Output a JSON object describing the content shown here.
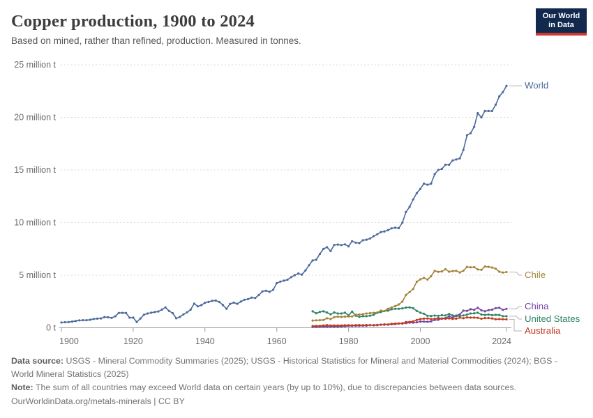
{
  "header": {
    "title": "Copper production, 1900 to 2024",
    "subtitle": "Based on mined, rather than refined, production. Measured in tonnes."
  },
  "logo": {
    "line1": "Our World",
    "line2": "in Data",
    "bg_color": "#12294e",
    "accent_color": "#ce392f"
  },
  "footer": {
    "source_label": "Data source:",
    "source_text": "USGS - Mineral Commodity Summaries (2025); USGS - Historical Statistics for Mineral and Material Commodities (2024); BGS - World Mineral Statistics (2025)",
    "note_label": "Note:",
    "note_text": "The sum of all countries may exceed World data on certain years (by up to 10%), due to discrepancies between data sources.",
    "url": "OurWorldinData.org/metals-minerals",
    "separator": "|",
    "license": "CC BY"
  },
  "chart_data": {
    "type": "line",
    "title": "Copper production, 1900 to 2024",
    "unit": "million tonnes",
    "xlabel": "",
    "ylabel": "",
    "ylim_million_t": [
      0,
      25
    ],
    "grid": "horizontal-dashed",
    "legend_position": "right-edge-labels",
    "x_ticks": [
      1900,
      1920,
      1940,
      1960,
      1980,
      2000,
      2024
    ],
    "y_ticks": [
      {
        "value": 0,
        "label": "0 t"
      },
      {
        "value": 5,
        "label": "5 million t"
      },
      {
        "value": 10,
        "label": "10 million t"
      },
      {
        "value": 15,
        "label": "15 million t"
      },
      {
        "value": 20,
        "label": "20 million t"
      },
      {
        "value": 25,
        "label": "25 million t"
      }
    ],
    "series": [
      {
        "name": "World",
        "color": "#4C6A9C",
        "start_year": 1900,
        "values_million_t": [
          0.5,
          0.53,
          0.54,
          0.59,
          0.65,
          0.7,
          0.72,
          0.72,
          0.76,
          0.84,
          0.87,
          0.89,
          1.02,
          1.0,
          0.94,
          1.09,
          1.41,
          1.42,
          1.41,
          0.96,
          0.97,
          0.54,
          0.88,
          1.24,
          1.36,
          1.43,
          1.5,
          1.55,
          1.73,
          1.94,
          1.6,
          1.39,
          0.9,
          1.03,
          1.27,
          1.47,
          1.72,
          2.3,
          2.03,
          2.15,
          2.38,
          2.46,
          2.56,
          2.59,
          2.45,
          2.16,
          1.81,
          2.27,
          2.39,
          2.28,
          2.49,
          2.66,
          2.73,
          2.87,
          2.83,
          3.11,
          3.46,
          3.52,
          3.42,
          3.61,
          4.24,
          4.39,
          4.48,
          4.57,
          4.81,
          5.0,
          5.16,
          5.05,
          5.46,
          5.95,
          6.4,
          6.48,
          7.01,
          7.49,
          7.66,
          7.29,
          7.87,
          7.91,
          7.86,
          7.93,
          7.74,
          8.23,
          8.09,
          8.05,
          8.32,
          8.37,
          8.49,
          8.71,
          8.89,
          9.1,
          9.16,
          9.28,
          9.46,
          9.51,
          9.47,
          10.0,
          11.0,
          11.5,
          12.2,
          12.8,
          13.2,
          13.7,
          13.6,
          13.7,
          14.6,
          15.0,
          15.1,
          15.5,
          15.5,
          15.9,
          16.0,
          16.1,
          16.9,
          18.3,
          18.5,
          19.1,
          20.4,
          20.0,
          20.6,
          20.6,
          20.6,
          21.2,
          22.0,
          22.4,
          23.0
        ]
      },
      {
        "name": "Chile",
        "color": "#A2843B",
        "start_year": 1970,
        "values_million_t": [
          0.69,
          0.71,
          0.72,
          0.74,
          0.9,
          0.83,
          1.01,
          1.06,
          1.03,
          1.06,
          1.07,
          1.08,
          1.24,
          1.26,
          1.29,
          1.36,
          1.4,
          1.42,
          1.45,
          1.63,
          1.59,
          1.81,
          1.93,
          2.06,
          2.22,
          2.49,
          3.12,
          3.39,
          3.69,
          4.38,
          4.6,
          4.74,
          4.58,
          4.9,
          5.41,
          5.32,
          5.36,
          5.56,
          5.33,
          5.39,
          5.42,
          5.26,
          5.43,
          5.78,
          5.75,
          5.76,
          5.55,
          5.5,
          5.83,
          5.79,
          5.73,
          5.62,
          5.33,
          5.25,
          5.3
        ]
      },
      {
        "name": "China",
        "color": "#7645A0",
        "start_year": 1970,
        "values_million_t": [
          0.1,
          0.1,
          0.11,
          0.11,
          0.11,
          0.12,
          0.12,
          0.12,
          0.13,
          0.15,
          0.18,
          0.18,
          0.19,
          0.19,
          0.2,
          0.2,
          0.25,
          0.25,
          0.28,
          0.29,
          0.3,
          0.3,
          0.33,
          0.35,
          0.4,
          0.44,
          0.44,
          0.49,
          0.49,
          0.52,
          0.59,
          0.59,
          0.57,
          0.61,
          0.74,
          0.76,
          0.89,
          0.92,
          1.09,
          0.96,
          1.16,
          1.27,
          1.63,
          1.6,
          1.76,
          1.71,
          1.9,
          1.66,
          1.56,
          1.68,
          1.72,
          1.87,
          1.9,
          1.7,
          1.8
        ]
      },
      {
        "name": "United States",
        "color": "#2C8465",
        "start_year": 1970,
        "values_million_t": [
          1.56,
          1.38,
          1.51,
          1.56,
          1.45,
          1.28,
          1.46,
          1.36,
          1.36,
          1.44,
          1.18,
          1.54,
          1.15,
          1.04,
          1.1,
          1.1,
          1.15,
          1.24,
          1.42,
          1.5,
          1.59,
          1.63,
          1.76,
          1.8,
          1.8,
          1.85,
          1.92,
          1.94,
          1.86,
          1.6,
          1.44,
          1.34,
          1.14,
          1.12,
          1.16,
          1.14,
          1.2,
          1.17,
          1.31,
          1.18,
          1.11,
          1.11,
          1.17,
          1.25,
          1.36,
          1.38,
          1.43,
          1.26,
          1.22,
          1.26,
          1.2,
          1.23,
          1.22,
          1.1,
          1.1
        ]
      },
      {
        "name": "Australia",
        "color": "#C03A21",
        "start_year": 1970,
        "values_million_t": [
          0.16,
          0.17,
          0.18,
          0.22,
          0.25,
          0.22,
          0.22,
          0.22,
          0.22,
          0.24,
          0.24,
          0.23,
          0.25,
          0.26,
          0.24,
          0.26,
          0.25,
          0.23,
          0.24,
          0.3,
          0.33,
          0.32,
          0.38,
          0.4,
          0.42,
          0.4,
          0.55,
          0.56,
          0.61,
          0.74,
          0.83,
          0.87,
          0.88,
          0.83,
          0.85,
          0.93,
          0.86,
          0.86,
          0.89,
          0.85,
          0.87,
          0.96,
          0.91,
          0.99,
          0.97,
          0.97,
          0.95,
          0.86,
          0.92,
          0.93,
          0.89,
          0.81,
          0.83,
          0.81,
          0.8
        ]
      }
    ]
  }
}
